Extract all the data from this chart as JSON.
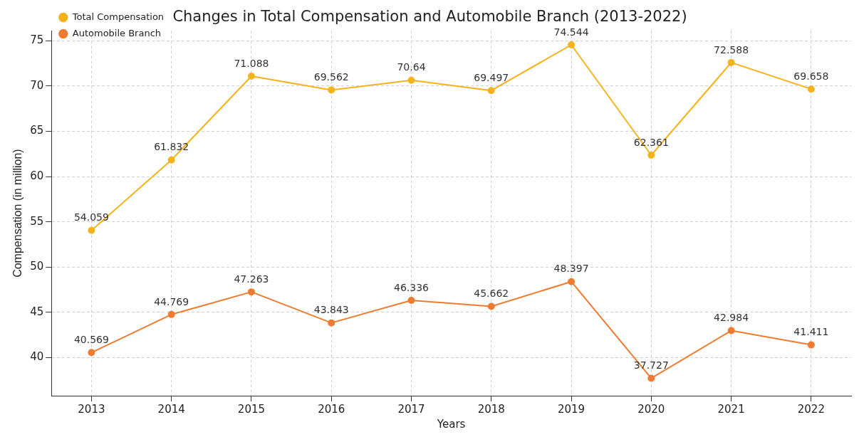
{
  "chart_data": {
    "type": "line",
    "title": "Changes in Total Compensation and Automobile Branch (2013-2022)",
    "xlabel": "Years",
    "ylabel": "Compensation (in million)",
    "categories": [
      "2013",
      "2014",
      "2015",
      "2016",
      "2017",
      "2018",
      "2019",
      "2020",
      "2021",
      "2022"
    ],
    "series": [
      {
        "name": "Total Compensation",
        "color": "#f5b21b",
        "values": [
          54.059,
          61.832,
          71.088,
          69.562,
          70.64,
          69.497,
          74.544,
          62.361,
          72.588,
          69.658
        ]
      },
      {
        "name": "Automobile Branch",
        "color": "#ee7b30",
        "values": [
          40.569,
          44.769,
          47.263,
          43.843,
          46.336,
          45.662,
          48.397,
          37.727,
          42.984,
          41.411
        ]
      }
    ],
    "ylim": [
      35.8,
      76.1
    ],
    "yticks": [
      40,
      45,
      50,
      55,
      60,
      65,
      70,
      75
    ],
    "grid": true,
    "legend": "top left",
    "marker": "circle",
    "line_style": "solid",
    "data_labels": true
  }
}
